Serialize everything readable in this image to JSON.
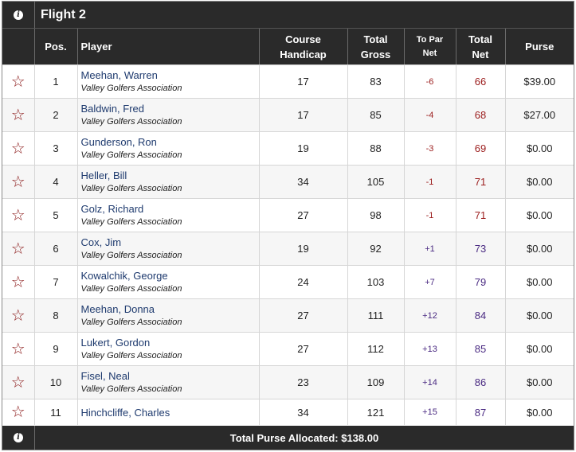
{
  "flight": {
    "title": "Flight 2",
    "info_icon": "info-icon"
  },
  "columns": {
    "pos": "Pos.",
    "player": "Player",
    "handicap_line1": "Course",
    "handicap_line2": "Handicap",
    "gross_line1": "Total",
    "gross_line2": "Gross",
    "topar_line1": "To Par",
    "topar_line2": "Net",
    "net_line1": "Total",
    "net_line2": "Net",
    "purse": "Purse"
  },
  "rows": [
    {
      "pos": "1",
      "name": "Meehan, Warren",
      "org": "Valley Golfers Association",
      "handicap": "17",
      "gross": "83",
      "to_par": "-6",
      "net": "66",
      "purse": "$39.00"
    },
    {
      "pos": "2",
      "name": "Baldwin, Fred",
      "org": "Valley Golfers Association",
      "handicap": "17",
      "gross": "85",
      "to_par": "-4",
      "net": "68",
      "purse": "$27.00"
    },
    {
      "pos": "3",
      "name": "Gunderson, Ron",
      "org": "Valley Golfers Association",
      "handicap": "19",
      "gross": "88",
      "to_par": "-3",
      "net": "69",
      "purse": "$0.00"
    },
    {
      "pos": "4",
      "name": "Heller, Bill",
      "org": "Valley Golfers Association",
      "handicap": "34",
      "gross": "105",
      "to_par": "-1",
      "net": "71",
      "purse": "$0.00"
    },
    {
      "pos": "5",
      "name": "Golz, Richard",
      "org": "Valley Golfers Association",
      "handicap": "27",
      "gross": "98",
      "to_par": "-1",
      "net": "71",
      "purse": "$0.00"
    },
    {
      "pos": "6",
      "name": "Cox, Jim",
      "org": "Valley Golfers Association",
      "handicap": "19",
      "gross": "92",
      "to_par": "+1",
      "net": "73",
      "purse": "$0.00"
    },
    {
      "pos": "7",
      "name": "Kowalchik, George",
      "org": "Valley Golfers Association",
      "handicap": "24",
      "gross": "103",
      "to_par": "+7",
      "net": "79",
      "purse": "$0.00"
    },
    {
      "pos": "8",
      "name": "Meehan, Donna",
      "org": "Valley Golfers Association",
      "handicap": "27",
      "gross": "111",
      "to_par": "+12",
      "net": "84",
      "purse": "$0.00"
    },
    {
      "pos": "9",
      "name": "Lukert, Gordon",
      "org": "Valley Golfers Association",
      "handicap": "27",
      "gross": "112",
      "to_par": "+13",
      "net": "85",
      "purse": "$0.00"
    },
    {
      "pos": "10",
      "name": "Fisel, Neal",
      "org": "Valley Golfers Association",
      "handicap": "23",
      "gross": "109",
      "to_par": "+14",
      "net": "86",
      "purse": "$0.00"
    },
    {
      "pos": "11",
      "name": "Hinchcliffe, Charles",
      "org": "",
      "handicap": "34",
      "gross": "121",
      "to_par": "+15",
      "net": "87",
      "purse": "$0.00"
    }
  ],
  "footer": {
    "total_label": "Total Purse Allocated: $138.00"
  },
  "colors": {
    "header_bg": "#2a2a2a",
    "under_par": "#9b1c1c",
    "over_par": "#4a2a82",
    "name_link": "#1e3a6e",
    "star": "#8b1a1a"
  },
  "icons": {
    "favorite": "star-outline-icon",
    "info": "info-icon"
  }
}
